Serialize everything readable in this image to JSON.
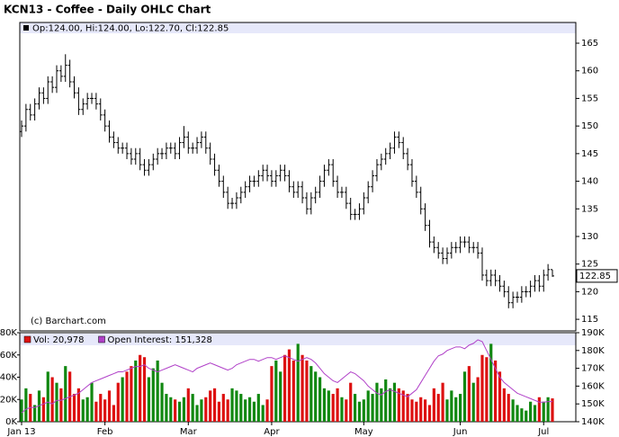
{
  "chart_data": [
    {
      "type": "ohlc",
      "title": "KCN13 - Coffee - Daily OHLC Chart",
      "header": "Op:124.00, Hi:124.00, Lo:122.70, Cl:122.85",
      "watermark": "(c) Barchart.com",
      "color": "#000000",
      "ylim": [
        112.9,
        168.75
      ],
      "yticks": [
        115,
        120,
        125,
        130,
        135,
        140,
        145,
        150,
        155,
        160,
        165
      ],
      "last_price": 122.85,
      "ohlc": [
        [
          149,
          151,
          148,
          150
        ],
        [
          150,
          154,
          149,
          153
        ],
        [
          153,
          154,
          151,
          152
        ],
        [
          152,
          155,
          151,
          154
        ],
        [
          154,
          157,
          153,
          156
        ],
        [
          156,
          157,
          154,
          155
        ],
        [
          155,
          159,
          154,
          158
        ],
        [
          158,
          159,
          156,
          157
        ],
        [
          157,
          161,
          156,
          160
        ],
        [
          160,
          161,
          158,
          159
        ],
        [
          159,
          163,
          158,
          161
        ],
        [
          161,
          162,
          157,
          158
        ],
        [
          158,
          159,
          155,
          156
        ],
        [
          156,
          157,
          152,
          153
        ],
        [
          153,
          155,
          152,
          154
        ],
        [
          154,
          156,
          153,
          155
        ],
        [
          155,
          156,
          154,
          155
        ],
        [
          155,
          156,
          153,
          154
        ],
        [
          154,
          155,
          151,
          152
        ],
        [
          152,
          153,
          149,
          150
        ],
        [
          150,
          151,
          147,
          148
        ],
        [
          148,
          149,
          146,
          147
        ],
        [
          147,
          148,
          145,
          146
        ],
        [
          146,
          147,
          145,
          146
        ],
        [
          146,
          147,
          144,
          145
        ],
        [
          145,
          146,
          143,
          144
        ],
        [
          144,
          146,
          143,
          145
        ],
        [
          145,
          146,
          142,
          143
        ],
        [
          143,
          144,
          141,
          142
        ],
        [
          142,
          144,
          141,
          143
        ],
        [
          143,
          145,
          142,
          144
        ],
        [
          144,
          146,
          143,
          145
        ],
        [
          145,
          146,
          144,
          145
        ],
        [
          145,
          147,
          144,
          146
        ],
        [
          146,
          147,
          145,
          146
        ],
        [
          146,
          147,
          144,
          145
        ],
        [
          145,
          148,
          144,
          147
        ],
        [
          147,
          150,
          146,
          148
        ],
        [
          148,
          149,
          145,
          146
        ],
        [
          146,
          147,
          145,
          146
        ],
        [
          146,
          148,
          145,
          147
        ],
        [
          147,
          149,
          146,
          148
        ],
        [
          148,
          149,
          145,
          146
        ],
        [
          146,
          147,
          143,
          144
        ],
        [
          144,
          145,
          141,
          142
        ],
        [
          142,
          143,
          139,
          140
        ],
        [
          140,
          141,
          137,
          138
        ],
        [
          138,
          139,
          135,
          136
        ],
        [
          136,
          137,
          135,
          136
        ],
        [
          136,
          138,
          135,
          137
        ],
        [
          137,
          139,
          136,
          138
        ],
        [
          138,
          140,
          137,
          139
        ],
        [
          139,
          141,
          138,
          140
        ],
        [
          140,
          141,
          139,
          140
        ],
        [
          140,
          142,
          139,
          141
        ],
        [
          141,
          143,
          140,
          142
        ],
        [
          142,
          143,
          140,
          141
        ],
        [
          141,
          142,
          139,
          140
        ],
        [
          140,
          142,
          139,
          141
        ],
        [
          141,
          143,
          140,
          142
        ],
        [
          142,
          143,
          140,
          141
        ],
        [
          141,
          142,
          138,
          139
        ],
        [
          139,
          140,
          137,
          138
        ],
        [
          138,
          140,
          137,
          139
        ],
        [
          139,
          140,
          136,
          137
        ],
        [
          137,
          138,
          134,
          135
        ],
        [
          135,
          138,
          134,
          137
        ],
        [
          137,
          139,
          136,
          138
        ],
        [
          138,
          141,
          137,
          140
        ],
        [
          140,
          143,
          139,
          142
        ],
        [
          142,
          144,
          141,
          143
        ],
        [
          143,
          144,
          139,
          140
        ],
        [
          140,
          141,
          137,
          138
        ],
        [
          138,
          139,
          137,
          138
        ],
        [
          138,
          139,
          135,
          136
        ],
        [
          136,
          137,
          133,
          134
        ],
        [
          134,
          135,
          133,
          134
        ],
        [
          134,
          136,
          133,
          135
        ],
        [
          135,
          138,
          134,
          137
        ],
        [
          137,
          140,
          136,
          139
        ],
        [
          139,
          142,
          138,
          141
        ],
        [
          141,
          144,
          140,
          143
        ],
        [
          143,
          145,
          142,
          144
        ],
        [
          144,
          146,
          143,
          145
        ],
        [
          145,
          147,
          144,
          146
        ],
        [
          146,
          149,
          145,
          148
        ],
        [
          148,
          149,
          146,
          147
        ],
        [
          147,
          148,
          144,
          145
        ],
        [
          145,
          146,
          142,
          143
        ],
        [
          143,
          144,
          139,
          140
        ],
        [
          140,
          141,
          137,
          138
        ],
        [
          138,
          139,
          134,
          135
        ],
        [
          135,
          136,
          131,
          132
        ],
        [
          132,
          133,
          128,
          129
        ],
        [
          129,
          130,
          127,
          128
        ],
        [
          128,
          129,
          126,
          127
        ],
        [
          127,
          128,
          125,
          126
        ],
        [
          126,
          128,
          125,
          127
        ],
        [
          127,
          129,
          126,
          128
        ],
        [
          128,
          129,
          127,
          128
        ],
        [
          128,
          130,
          127,
          129
        ],
        [
          129,
          130,
          128,
          129
        ],
        [
          129,
          130,
          127,
          128
        ],
        [
          128,
          129,
          127,
          128
        ],
        [
          128,
          129,
          126,
          127
        ],
        [
          127,
          128,
          122,
          123
        ],
        [
          123,
          124,
          121,
          122
        ],
        [
          122,
          124,
          121,
          123
        ],
        [
          123,
          124,
          121,
          122
        ],
        [
          122,
          123,
          120,
          121
        ],
        [
          121,
          122,
          119,
          120
        ],
        [
          120,
          121,
          117,
          118
        ],
        [
          118,
          120,
          117,
          119
        ],
        [
          119,
          120,
          118,
          119
        ],
        [
          119,
          121,
          118,
          120
        ],
        [
          120,
          121,
          119,
          120
        ],
        [
          120,
          122,
          119,
          121
        ],
        [
          121,
          123,
          120,
          122
        ],
        [
          122,
          123,
          120,
          121
        ],
        [
          121,
          124,
          120,
          123
        ],
        [
          123,
          125,
          122,
          124
        ],
        [
          124,
          124,
          122.7,
          122.85
        ]
      ]
    },
    {
      "type": "bar",
      "categories": [
        "Jan 13",
        null,
        null,
        null,
        null,
        null,
        null,
        null,
        null,
        null,
        null,
        null,
        null,
        null,
        null,
        null,
        null,
        null,
        null,
        "Feb",
        null,
        null,
        null,
        null,
        null,
        null,
        null,
        null,
        null,
        null,
        null,
        null,
        null,
        null,
        null,
        null,
        null,
        null,
        "Mar",
        null,
        null,
        null,
        null,
        null,
        null,
        null,
        null,
        null,
        null,
        null,
        null,
        null,
        null,
        null,
        null,
        null,
        null,
        "Apr",
        null,
        null,
        null,
        null,
        null,
        null,
        null,
        null,
        null,
        null,
        null,
        null,
        null,
        null,
        null,
        null,
        null,
        null,
        null,
        null,
        "May",
        null,
        null,
        null,
        null,
        null,
        null,
        null,
        null,
        null,
        null,
        null,
        null,
        null,
        null,
        null,
        null,
        null,
        null,
        null,
        null,
        null,
        "Jun",
        null,
        null,
        null,
        null,
        null,
        null,
        null,
        null,
        null,
        null,
        null,
        null,
        null,
        null,
        null,
        null,
        null,
        null,
        "Jul",
        null,
        null
      ],
      "ylim": [
        0,
        80000
      ],
      "yticks": [
        {
          "value": 0,
          "label": "0K"
        },
        {
          "value": 20000,
          "label": "20K"
        },
        {
          "value": 40000,
          "label": "40K"
        },
        {
          "value": 60000,
          "label": "60K"
        },
        {
          "value": 80000,
          "label": "80K"
        }
      ],
      "y2lim": [
        140000,
        190000
      ],
      "y2ticks": [
        {
          "value": 140000,
          "label": "140K"
        },
        {
          "value": 150000,
          "label": "150K"
        },
        {
          "value": 160000,
          "label": "160K"
        },
        {
          "value": 170000,
          "label": "170K"
        },
        {
          "value": 180000,
          "label": "180K"
        },
        {
          "value": 190000,
          "label": "190K"
        }
      ],
      "series": [
        {
          "name": "Vol: 20,978",
          "color": "#dd1111",
          "up_color": "#118811",
          "values": [
            20000,
            30000,
            25000,
            15000,
            28000,
            22000,
            45000,
            40000,
            35000,
            30000,
            50000,
            45000,
            25000,
            30000,
            20000,
            22000,
            35000,
            18000,
            25000,
            20000,
            28000,
            15000,
            35000,
            40000,
            45000,
            50000,
            55000,
            60000,
            58000,
            40000,
            48000,
            55000,
            35000,
            25000,
            22000,
            20000,
            18000,
            22000,
            30000,
            25000,
            15000,
            20000,
            22000,
            28000,
            30000,
            18000,
            25000,
            20000,
            30000,
            28000,
            25000,
            20000,
            22000,
            18000,
            25000,
            15000,
            20000,
            50000,
            55000,
            45000,
            60000,
            65000,
            55000,
            70000,
            60000,
            55000,
            50000,
            45000,
            40000,
            30000,
            28000,
            25000,
            30000,
            22000,
            20000,
            35000,
            25000,
            18000,
            20000,
            28000,
            25000,
            35000,
            30000,
            38000,
            30000,
            35000,
            30000,
            28000,
            25000,
            20000,
            18000,
            22000,
            20000,
            15000,
            30000,
            25000,
            35000,
            20000,
            28000,
            22000,
            25000,
            45000,
            50000,
            35000,
            40000,
            60000,
            58000,
            70000,
            55000,
            45000,
            30000,
            25000,
            20000,
            15000,
            12000,
            10000,
            18000,
            15000,
            22000,
            18000,
            22000,
            20978
          ]
        },
        {
          "name": "Open Interest: 151,328",
          "color": "#b040c8",
          "axis": "y2",
          "values": [
            145000,
            147000,
            148000,
            148000,
            149000,
            150000,
            151000,
            150000,
            152000,
            152000,
            153000,
            154000,
            155000,
            156000,
            158000,
            160000,
            162000,
            163000,
            164000,
            165000,
            166000,
            167000,
            168000,
            168000,
            169000,
            170000,
            171000,
            171000,
            172000,
            170000,
            169000,
            168000,
            169000,
            170000,
            171000,
            172000,
            171000,
            170000,
            169000,
            168000,
            170000,
            171000,
            172000,
            173000,
            172000,
            171000,
            170000,
            169000,
            170000,
            172000,
            173000,
            174000,
            175000,
            175000,
            174000,
            175000,
            176000,
            176000,
            175000,
            176000,
            177000,
            176000,
            175000,
            174000,
            175000,
            176000,
            175000,
            173000,
            170000,
            167000,
            165000,
            163000,
            162000,
            164000,
            166000,
            168000,
            167000,
            165000,
            163000,
            160000,
            158000,
            156000,
            155000,
            157000,
            158000,
            157000,
            156000,
            155000,
            154000,
            156000,
            158000,
            162000,
            166000,
            170000,
            174000,
            177000,
            178000,
            180000,
            181000,
            182000,
            182000,
            181000,
            183000,
            184000,
            186000,
            185000,
            180000,
            175000,
            170000,
            165000,
            162000,
            160000,
            158000,
            156000,
            155000,
            154000,
            153000,
            152000,
            151000,
            151000,
            151300,
            151328
          ]
        }
      ]
    }
  ]
}
